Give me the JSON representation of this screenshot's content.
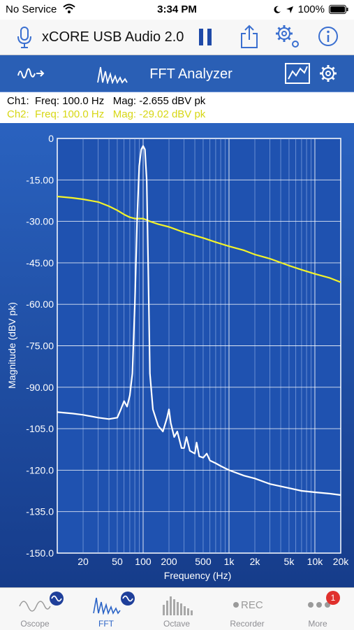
{
  "status_bar": {
    "carrier": "No Service",
    "time": "3:34 PM",
    "battery": "100%",
    "icons": [
      "wifi-icon",
      "moon-icon",
      "location-icon",
      "battery-icon"
    ]
  },
  "app_bar": {
    "title": "xCORE USB Audio 2.0",
    "icons": [
      "microphone-icon",
      "pause-icon",
      "share-icon",
      "settings-gear-icon",
      "info-icon"
    ]
  },
  "tool_bar": {
    "title": "FFT Analyzer",
    "icons": [
      "generator-wave-icon",
      "fft-icon",
      "chart-view-icon",
      "gear-icon"
    ]
  },
  "readout": {
    "ch1": "Ch1:  Freq: 100.0 Hz   Mag: -2.655 dBV pk",
    "ch2": "Ch2:  Freq: 100.0 Hz   Mag: -29.02 dBV pk"
  },
  "colors": {
    "background": "#1c4a9c",
    "toolbar": "#2a5fb5",
    "ch1": "#ffffff",
    "ch2": "#f3f32a",
    "ch2_text": "#d7d714",
    "grid": "#a9c3f0",
    "accent": "#2a63c6"
  },
  "chart_data": {
    "type": "line",
    "xlabel": "Frequency (Hz)",
    "ylabel": "Magnitude (dBV pk)",
    "xscale": "log",
    "xlim": [
      10,
      20000
    ],
    "ylim": [
      -150,
      0
    ],
    "grid": true,
    "x_tick_values": [
      20,
      50,
      100,
      200,
      500,
      1000,
      2000,
      5000,
      10000,
      20000
    ],
    "x_tick_labels": [
      "20",
      "50",
      "100",
      "200",
      "500",
      "1k",
      "2k",
      "5k",
      "10k",
      "20k"
    ],
    "y_tick_values": [
      0,
      -15,
      -30,
      -45,
      -60,
      -75,
      -90,
      -105,
      -120,
      -135,
      -150
    ],
    "y_tick_labels": [
      "0",
      "-15.00",
      "-30.00",
      "-45.00",
      "-60.00",
      "-75.00",
      "-90.00",
      "-105.0",
      "-120.0",
      "-135.0",
      "-150.0"
    ],
    "series": [
      {
        "name": "Ch1",
        "x": [
          10,
          15,
          20,
          30,
          40,
          50,
          55,
          60,
          65,
          70,
          75,
          80,
          85,
          90,
          95,
          100,
          105,
          110,
          115,
          120,
          130,
          150,
          170,
          190,
          200,
          210,
          230,
          250,
          280,
          300,
          320,
          350,
          400,
          420,
          450,
          500,
          550,
          600,
          700,
          800,
          1000,
          1500,
          2000,
          3000,
          5000,
          7000,
          10000,
          15000,
          20000
        ],
        "y": [
          -99,
          -99.5,
          -100,
          -101,
          -101.5,
          -101,
          -98,
          -95,
          -97,
          -93,
          -85,
          -60,
          -30,
          -10,
          -4,
          -2.7,
          -4,
          -15,
          -50,
          -85,
          -98,
          -104,
          -106,
          -101,
          -98,
          -103,
          -108,
          -106,
          -112,
          -112,
          -108,
          -113,
          -114,
          -110,
          -115,
          -115.5,
          -114,
          -116.5,
          -117.5,
          -118.5,
          -120,
          -122,
          -123,
          -125,
          -126.5,
          -127.5,
          -128,
          -128.5,
          -129
        ]
      },
      {
        "name": "Ch2",
        "x": [
          10,
          15,
          20,
          30,
          40,
          50,
          60,
          70,
          80,
          90,
          100,
          120,
          150,
          200,
          300,
          500,
          700,
          1000,
          1500,
          2000,
          3000,
          5000,
          7000,
          10000,
          15000,
          20000
        ],
        "y": [
          -21,
          -21.5,
          -22,
          -23,
          -24.5,
          -26,
          -27.5,
          -28.5,
          -29,
          -29,
          -29,
          -30,
          -31,
          -32,
          -34,
          -36,
          -37.5,
          -39,
          -40.5,
          -42,
          -43.5,
          -46,
          -47.5,
          -49,
          -50.5,
          -52
        ]
      }
    ]
  },
  "tabs": [
    {
      "label": "Oscope"
    },
    {
      "label": "FFT"
    },
    {
      "label": "Octave"
    },
    {
      "label": "Recorder"
    },
    {
      "label": "More",
      "badge": "1"
    }
  ]
}
